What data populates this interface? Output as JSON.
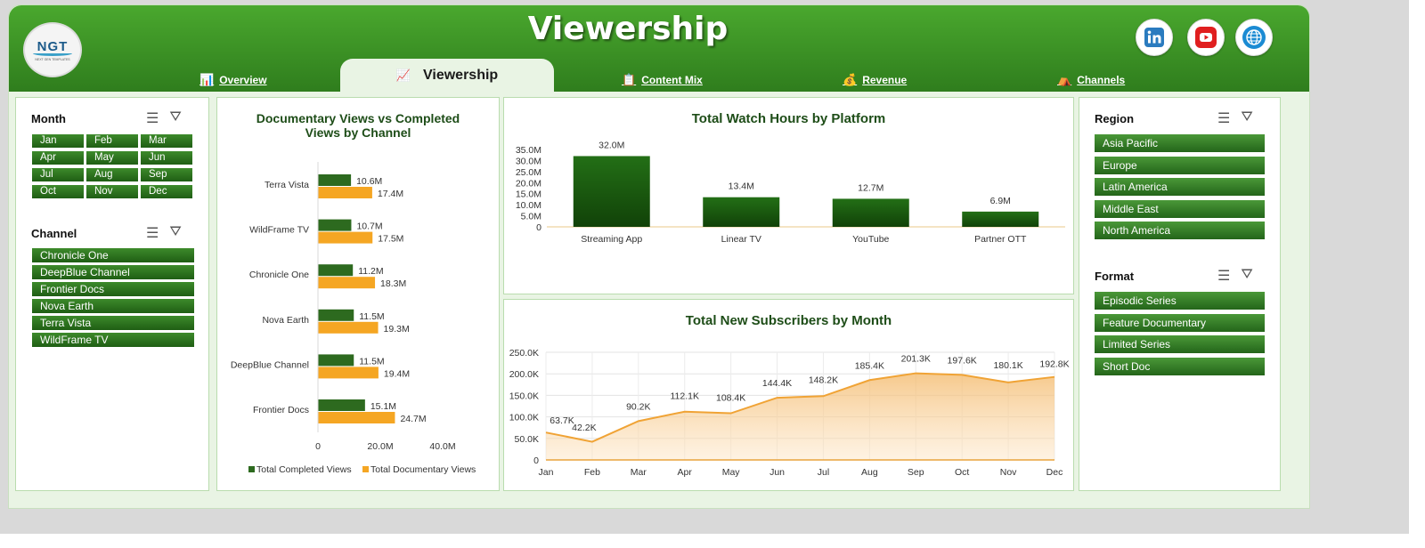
{
  "header": {
    "title": "Viewership",
    "logo_text": "NGT",
    "logo_subtext": "NEXT GEN TEMPLATES",
    "tabs": [
      {
        "label": "Overview",
        "icon": "bar-chart-icon"
      },
      {
        "label": "Viewership",
        "icon": "line-chart-icon",
        "active": true
      },
      {
        "label": "Content Mix",
        "icon": "clipboard-icon"
      },
      {
        "label": "Revenue",
        "icon": "money-bag-icon"
      },
      {
        "label": "Channels",
        "icon": "tent-icon"
      }
    ],
    "social": [
      "linkedin-icon",
      "youtube-icon",
      "globe-icon"
    ]
  },
  "slicers": {
    "month": {
      "title": "Month",
      "items": [
        "Jan",
        "Feb",
        "Mar",
        "Apr",
        "May",
        "Jun",
        "Jul",
        "Aug",
        "Sep",
        "Oct",
        "Nov",
        "Dec"
      ]
    },
    "channel": {
      "title": "Channel",
      "items": [
        "Chronicle One",
        "DeepBlue Channel",
        "Frontier Docs",
        "Nova Earth",
        "Terra Vista",
        "WildFrame TV"
      ]
    },
    "region": {
      "title": "Region",
      "items": [
        "Asia Pacific",
        "Europe",
        "Latin America",
        "Middle East",
        "North America"
      ]
    },
    "format": {
      "title": "Format",
      "items": [
        "Episodic Series",
        "Feature Documentary",
        "Limited Series",
        "Short Doc"
      ]
    }
  },
  "colors": {
    "green": "#2d6a1f",
    "dark_green": "#1b520f",
    "orange": "#f5a623",
    "header": "#3f9a28"
  },
  "chart_data": [
    {
      "type": "bar",
      "orientation": "horizontal",
      "title": "Documentary Views vs Completed Views by Channel",
      "categories": [
        "Terra Vista",
        "WildFrame TV",
        "Chronicle One",
        "Nova Earth",
        "DeepBlue Channel",
        "Frontier Docs"
      ],
      "series": [
        {
          "name": "Total Completed Views",
          "values": [
            10.6,
            10.7,
            11.2,
            11.5,
            11.5,
            15.1
          ],
          "labels": [
            "10.6M",
            "10.7M",
            "11.2M",
            "11.5M",
            "11.5M",
            "15.1M"
          ]
        },
        {
          "name": "Total Documentary Views",
          "values": [
            17.4,
            17.5,
            18.3,
            19.3,
            19.4,
            24.7
          ],
          "labels": [
            "17.4M",
            "17.5M",
            "18.3M",
            "19.3M",
            "19.4M",
            "24.7M"
          ]
        }
      ],
      "xlim": [
        0,
        40
      ],
      "xticks": [
        "0",
        "20.0M",
        "40.0M"
      ],
      "legend": "bottom"
    },
    {
      "type": "bar",
      "title": "Total Watch Hours by Platform",
      "categories": [
        "Streaming App",
        "Linear TV",
        "YouTube",
        "Partner OTT"
      ],
      "values": [
        32.0,
        13.4,
        12.7,
        6.9
      ],
      "labels": [
        "32.0M",
        "13.4M",
        "12.7M",
        "6.9M"
      ],
      "ylim": [
        0,
        35
      ],
      "yticks": [
        "0",
        "5.0M",
        "10.0M",
        "15.0M",
        "20.0M",
        "25.0M",
        "30.0M",
        "35.0M"
      ]
    },
    {
      "type": "area",
      "title": "Total New Subscribers  by Month",
      "categories": [
        "Jan",
        "Feb",
        "Mar",
        "Apr",
        "May",
        "Jun",
        "Jul",
        "Aug",
        "Sep",
        "Oct",
        "Nov",
        "Dec"
      ],
      "values": [
        63.7,
        42.2,
        90.2,
        112.1,
        108.4,
        144.4,
        148.2,
        185.4,
        201.3,
        197.6,
        180.1,
        192.8
      ],
      "labels": [
        "63.7K",
        "42.2K",
        "90.2K",
        "112.1K",
        "108.4K",
        "144.4K",
        "148.2K",
        "185.4K",
        "201.3K",
        "197.6K",
        "180.1K",
        "192.8K"
      ],
      "ylim": [
        0,
        250
      ],
      "yticks": [
        "0",
        "50.0K",
        "100.0K",
        "150.0K",
        "200.0K",
        "250.0K"
      ],
      "grid": true
    }
  ]
}
